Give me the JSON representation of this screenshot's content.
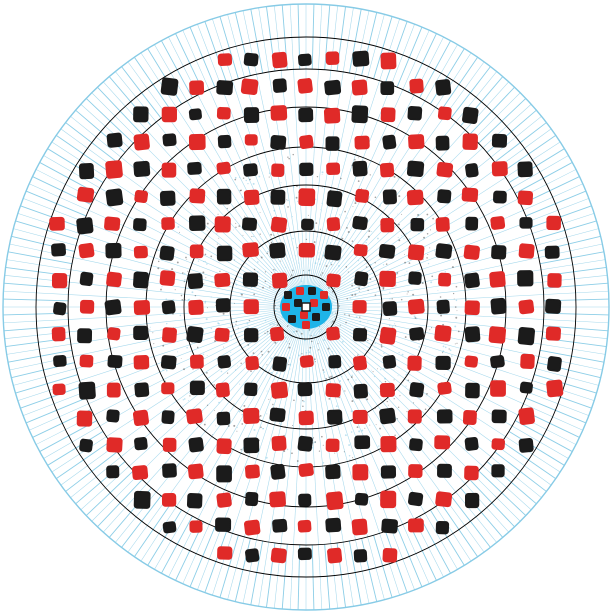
{
  "diagram": {
    "kind": "circular-grid-pattern",
    "spokes": {
      "color": "#87cbe6",
      "count": 240
    },
    "rings": {
      "color": "#000000",
      "count": 7
    },
    "center": {
      "color": "#1eb4e8"
    },
    "marker_colors": {
      "red": "#e02a28",
      "black": "#1b1b1b"
    }
  }
}
